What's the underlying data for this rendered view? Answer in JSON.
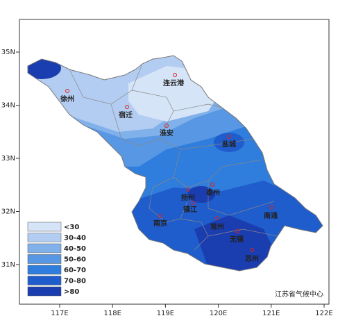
{
  "map": {
    "lon_ticks": [
      {
        "value": 117,
        "label": "117E"
      },
      {
        "value": 118,
        "label": "118E"
      },
      {
        "value": 119,
        "label": "119E"
      },
      {
        "value": 120,
        "label": "120E"
      },
      {
        "value": 121,
        "label": "121E"
      },
      {
        "value": 122,
        "label": "122E"
      }
    ],
    "lat_ticks": [
      {
        "value": 35,
        "label": "35N"
      },
      {
        "value": 34,
        "label": "34N"
      },
      {
        "value": 33,
        "label": "33N"
      },
      {
        "value": 32,
        "label": "32N"
      },
      {
        "value": 31,
        "label": "31N"
      }
    ],
    "cities": [
      "连云港",
      "徐州",
      "宿迁",
      "淮安",
      "盐城",
      "扬州",
      "泰州",
      "镇江",
      "南京",
      "常州",
      "南通",
      "无锡",
      "苏州"
    ],
    "legend": [
      {
        "label": "<30",
        "color": "#d6e4f7"
      },
      {
        "label": "30-40",
        "color": "#b3cdf2"
      },
      {
        "label": "40-50",
        "color": "#80b1ea"
      },
      {
        "label": "50-60",
        "color": "#5797e3"
      },
      {
        "label": "60-70",
        "color": "#2f7ddc"
      },
      {
        "label": "70-80",
        "color": "#1f5ccc"
      },
      {
        "label": ">80",
        "color": "#1a3db0"
      }
    ],
    "source": "江苏省气候中心"
  }
}
